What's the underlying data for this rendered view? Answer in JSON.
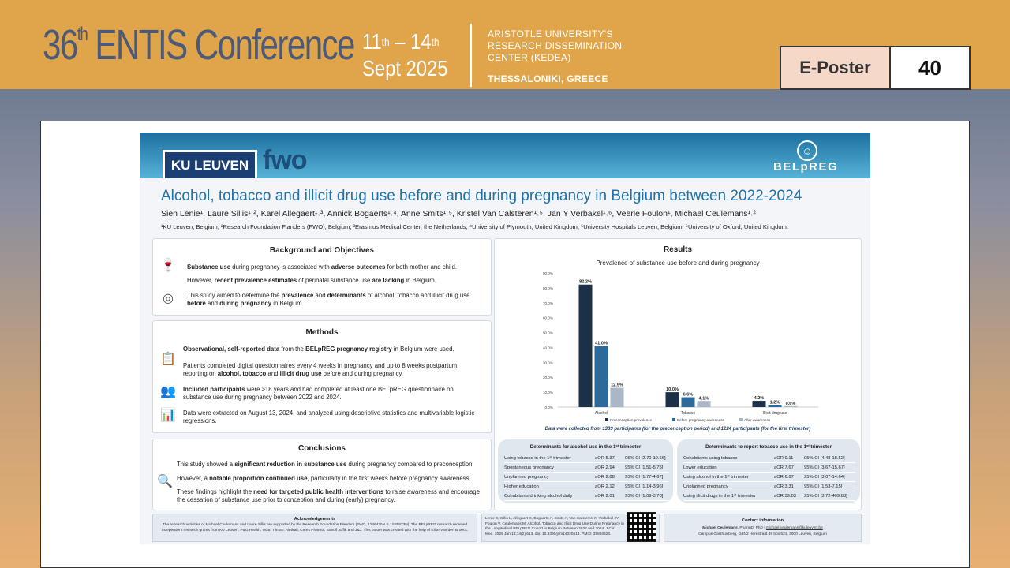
{
  "banner": {
    "conference_number": "36",
    "conference_suffix": "th",
    "conference_name": "ENTIS Conference",
    "date_start": "11",
    "date_start_suffix": "th",
    "date_dash": "–",
    "date_end": "14",
    "date_end_suffix": "th",
    "date_month_year": "Sept 2025",
    "venue_line1": "ARISTOTLE UNIVERSITY'S",
    "venue_line2": "RESEARCH DISSEMINATION",
    "venue_line3": "CENTER (KEDEA)",
    "venue_city": "THESSALONIKI, GREECE",
    "eposter_label": "E-Poster",
    "eposter_number": "40"
  },
  "poster": {
    "logo_ku": "KU LEUVEN",
    "logo_fwo": "fwo",
    "logo_belpreg": "BELpREG",
    "title": "Alcohol, tobacco and illicit drug use before and during pregnancy in Belgium between 2022-2024",
    "authors": "Sien Lenie¹, Laure Sillis¹˒², Karel Allegaert¹˒³, Annick Bogaerts¹˒⁴, Anne Smits¹˒⁵, Kristel Van Calsteren¹˒⁵, Jan Y Verbakel¹˒⁶, Veerle Foulon¹, Michael Ceulemans¹˒²",
    "affiliations": "¹KU Leuven, Belgium; ²Research Foundation Flanders (FWO), Belgium; ³Erasmus Medical Center, the Netherlands; ⁴University of Plymouth, United Kingdom; ⁵University Hospitals Leuven, Belgium; ⁶University of Oxford, United Kingdom.",
    "background": {
      "title": "Background and Objectives",
      "p1_b1": "Substance use",
      "p1_t1": " during pregnancy is associated with ",
      "p1_b2": "adverse outcomes",
      "p1_t2": " for both mother and child.",
      "p2_t1": "However, ",
      "p2_b1": "recent prevalence estimates",
      "p2_t2": " of perinatal substance use ",
      "p2_b2": "are lacking",
      "p2_t3": " in Belgium.",
      "p3_t1": "This study aimed to determine the ",
      "p3_b1": "prevalence",
      "p3_t2": " and ",
      "p3_b2": "determinants",
      "p3_t3": " of alcohol, tobacco and illicit drug use ",
      "p3_b3": "before",
      "p3_t4": " and ",
      "p3_b4": "during pregnancy",
      "p3_t5": " in Belgium."
    },
    "methods": {
      "title": "Methods",
      "p1_b1": "Observational, self-reported data",
      "p1_t1": " from the ",
      "p1_b2": "BELpREG pregnancy registry",
      "p1_t2": " in Belgium were used.",
      "p2_t1": "Patients completed digital questionnaires every 4 weeks in pregnancy and up to 8 weeks postpartum, reporting on ",
      "p2_b1": "alcohol, tobacco",
      "p2_t2": " and ",
      "p2_b2": "illicit drug use",
      "p2_t3": " before and during pregnancy.",
      "p3_b1": "Included participants",
      "p3_t1": " were ≥18 years and had completed at least one BELpREG questionnaire on substance use during pregnancy between 2022 and 2024.",
      "p4": "Data were extracted on August 13, 2024, and analyzed using descriptive statistics and multivariable logistic regressions."
    },
    "conclusions": {
      "title": "Conclusions",
      "p1_t1": "This study showed a ",
      "p1_b1": "significant reduction in substance use",
      "p1_t2": " during pregnancy compared to preconception.",
      "p2_t1": "However, a ",
      "p2_b1": "notable proportion continued use",
      "p2_t2": ", particularly in the first weeks before pregnancy awareness.",
      "p3_t1": "These findings highlight the ",
      "p3_b1": "need for targeted public health interventions",
      "p3_t2": " to raise awareness and encourage the cessation of substance use prior to conception and during (early) pregnancy."
    },
    "results": {
      "title": "Results",
      "data_note": "Data were collected from 1339 participants (for the preconception period) and 1224 participants (for the first trimester)"
    },
    "det_alcohol": {
      "title": "Determinants for alcohol use in the 1ˢᵗ trimester",
      "rows": [
        {
          "label": "Using tobacco in the 1ˢᵗ trimester",
          "aor": "aOR 5.37",
          "ci": "95% CI [2.70-10.66]"
        },
        {
          "label": "Spontaneous pregnancy",
          "aor": "aOR 2.94",
          "ci": "95% CI [1.51-5.75]"
        },
        {
          "label": "Unplanned pregnancy",
          "aor": "aOR 2.88",
          "ci": "95% CI [1.77-4.67]"
        },
        {
          "label": "Higher education",
          "aor": "aOR 2.12",
          "ci": "95% CI [1.14-3.96]"
        },
        {
          "label": "Cohabitants drinking alcohol daily",
          "aor": "aOR 2.01",
          "ci": "95% CI [1.09-3.70]"
        }
      ]
    },
    "det_tobacco": {
      "title": "Determinants to report tobacco use in the 1ˢᵗ trimester",
      "rows": [
        {
          "label": "Cohabitants using tobacco",
          "aor": "aOR 9.11",
          "ci": "95% CI [4.48-18.52]"
        },
        {
          "label": "Lower education",
          "aor": "aOR 7.67",
          "ci": "95% CI [3.67-15.67]"
        },
        {
          "label": "Using alcohol in the 1ˢᵗ trimester",
          "aor": "aOR 6.67",
          "ci": "95% CI [3.07-14.64]"
        },
        {
          "label": "Unplanned pregnancy",
          "aor": "aOR 3.31",
          "ci": "95% CI [1.53-7.15]"
        },
        {
          "label": "Using illicit drugs in the 1ˢᵗ trimester",
          "aor": "aOR 39.03",
          "ci": "95% CI [3.72-409.83]"
        }
      ]
    },
    "footer": {
      "ack_title": "Acknowledgements",
      "ack_text": "The research activities of Michael Ceulemans and Laure Sillis are supported by the Research Foundation Flanders (FWO, 1246425N & 1S35823N). The BELpREG research received independent research grants from KU Leuven, P&G Health, UCB, Tilman, Almirall, Ceres Pharma, Sanofi, Effik and J&J. This poster was created with the help of Elise Van den Broeck.",
      "ref_text": "Lenie S, Sillis L, Allegaert K, Bogaerts A, Smits A, Van Calsteren K, Verbakel JY, Foulon V, Ceulemans M. Alcohol, Tobacco and Illicit Drug Use During Pregnancy in the Longitudinal BELpREG Cohort in Belgium Between 2022 and 2024. J Clin Med. 2025 Jan 18;14(2):613. doi: 10.3390/jcm14020613. PMID: 39860620.",
      "contact_title": "Contact information",
      "contact_name": "Michael Ceulemans",
      "contact_role": ", PharmD, PhD | ",
      "contact_email": "michael.ceulemans@kuleuven.be",
      "contact_address": "Campus Gasthuisberg, O&N2 Herestraat 49 box 521, 3000 Leuven, Belgium"
    }
  },
  "chart_data": {
    "type": "bar",
    "title": "Prevalence of substance use before and during pregnancy",
    "categories": [
      "Alcohol",
      "Tobacco",
      "Illicit drug use"
    ],
    "series": [
      {
        "name": "Preconception prevalence",
        "values": [
          82.2,
          10.0,
          4.2
        ],
        "color": "#1c3048"
      },
      {
        "name": "Before pregnancy awareness",
        "values": [
          41.0,
          6.6,
          1.2
        ],
        "color": "#2b6a9a"
      },
      {
        "name": "After awareness",
        "values": [
          12.9,
          4.1,
          0.6
        ],
        "color": "#a9b7c6"
      }
    ],
    "data_labels": [
      [
        "82.2%",
        "10.0%",
        "4.2%"
      ],
      [
        "41.0%",
        "6.6%",
        "1.2%"
      ],
      [
        "12.9%",
        "4.1%",
        "0.6%"
      ]
    ],
    "y_ticks": [
      "0.0%",
      "10.0%",
      "20.0%",
      "30.0%",
      "40.0%",
      "50.0%",
      "60.0%",
      "70.0%",
      "80.0%",
      "90.0%"
    ],
    "ylim": [
      0,
      90
    ],
    "legend_position": "bottom",
    "grid": false
  }
}
